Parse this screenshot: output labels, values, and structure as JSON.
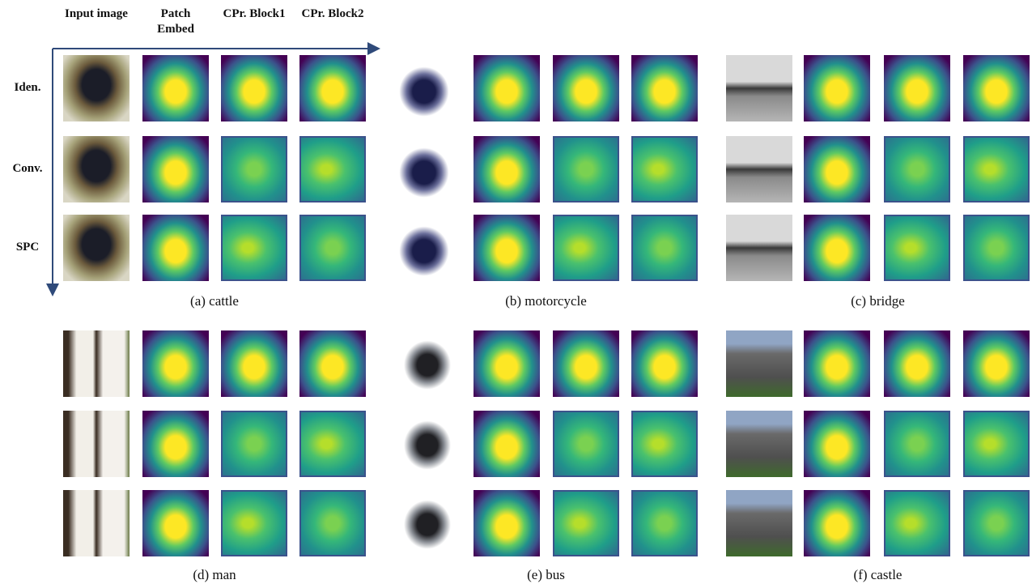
{
  "header": {
    "columns": [
      "Input image",
      "Patch Embed",
      "CPr. Block1",
      "CPr. Block2"
    ]
  },
  "rows": [
    "Iden.",
    "Conv.",
    "SPC"
  ],
  "panels": [
    {
      "caption": "(a) cattle"
    },
    {
      "caption": "(b) motorcycle"
    },
    {
      "caption": "(c) bridge"
    },
    {
      "caption": "(d) man"
    },
    {
      "caption": "(e) bus"
    },
    {
      "caption": "(f) castle"
    }
  ]
}
